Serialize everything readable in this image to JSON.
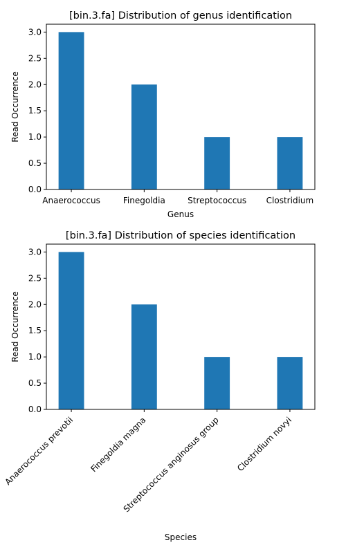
{
  "chart_data": [
    {
      "type": "bar",
      "title": "[bin.3.fa] Distribution of genus identification",
      "xlabel": "Genus",
      "ylabel": "Read Occurrence",
      "categories": [
        "Anaerococcus",
        "Finegoldia",
        "Streptococcus",
        "Clostridium"
      ],
      "values": [
        3,
        2,
        1,
        1
      ],
      "ylim": [
        0,
        3.15
      ],
      "yticks": [
        "0.0",
        "0.5",
        "1.0",
        "1.5",
        "2.0",
        "2.5",
        "3.0"
      ],
      "bar_color": "#1f77b4",
      "grid": false
    },
    {
      "type": "bar",
      "title": "[bin.3.fa] Distribution of species identification",
      "xlabel": "Species",
      "ylabel": "Read Occurrence",
      "categories": [
        "Anaerococcus prevotii",
        "Finegoldia magna",
        "Streptococcus anginosus group",
        "Clostridium novyi"
      ],
      "values": [
        3,
        2,
        1,
        1
      ],
      "ylim": [
        0,
        3.15
      ],
      "yticks": [
        "0.0",
        "0.5",
        "1.0",
        "1.5",
        "2.0",
        "2.5",
        "3.0"
      ],
      "xtick_rotation": 45,
      "bar_color": "#1f77b4",
      "grid": false
    }
  ]
}
